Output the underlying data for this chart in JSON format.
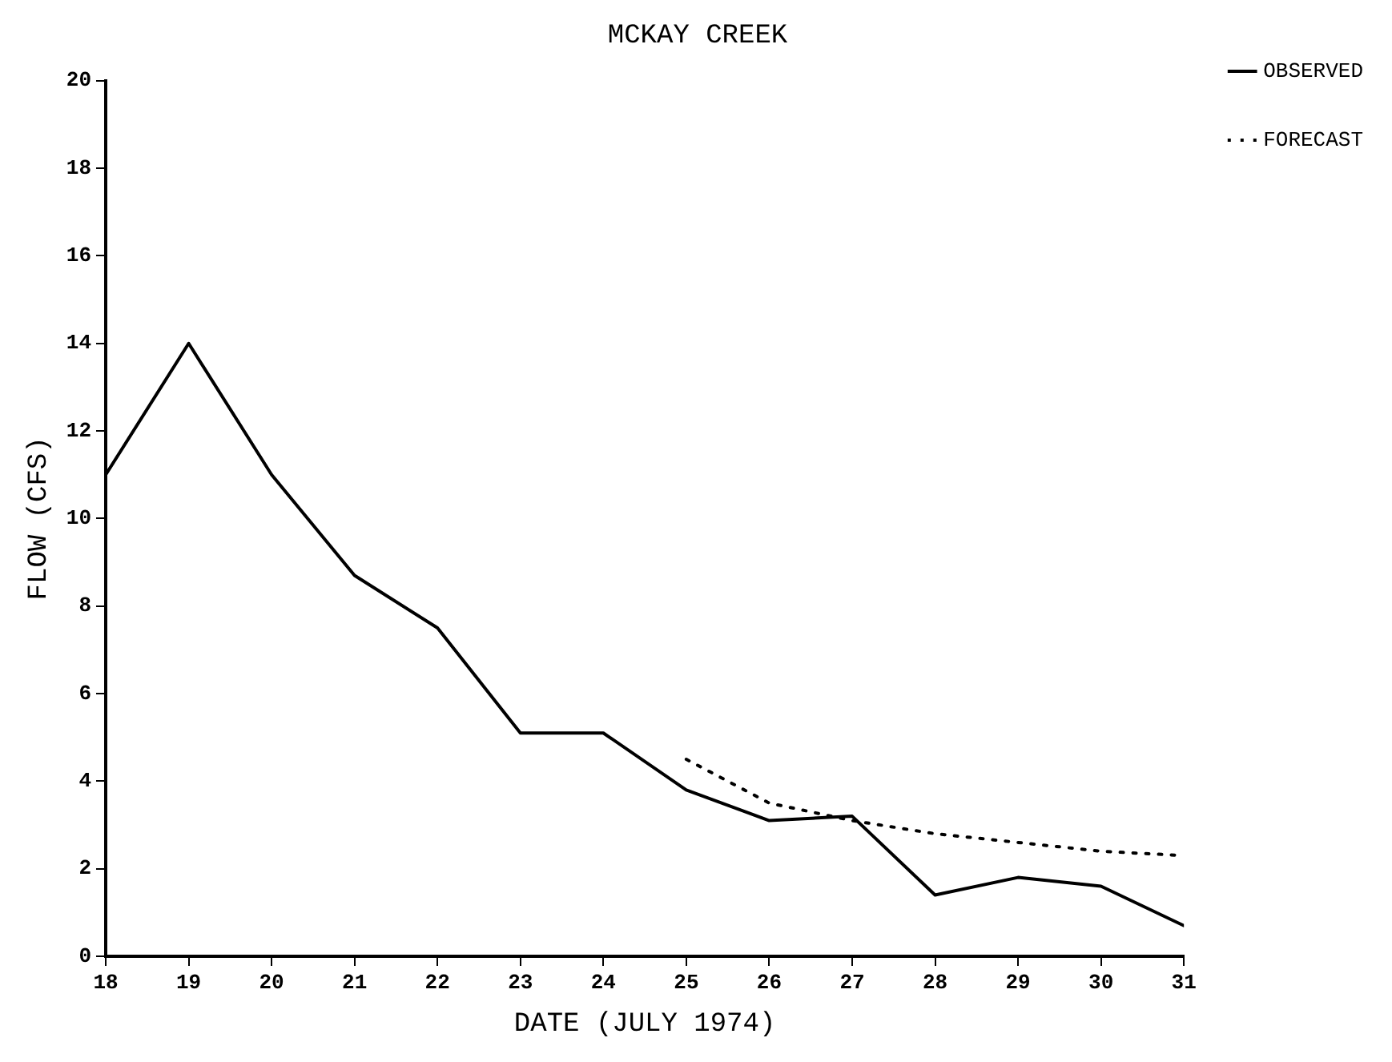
{
  "chart_data": {
    "type": "line",
    "title": "MCKAY CREEK",
    "xlabel": "DATE (JULY 1974)",
    "ylabel": "FLOW (CFS)",
    "xlim": [
      18,
      31
    ],
    "xticks": [
      18,
      19,
      20,
      21,
      22,
      23,
      24,
      25,
      26,
      27,
      28,
      29,
      30,
      31
    ],
    "ylim": [
      0,
      20
    ],
    "yticks": [
      0,
      2,
      4,
      6,
      8,
      10,
      12,
      14,
      16,
      18,
      20
    ],
    "series": [
      {
        "name": "OBSERVED",
        "color": "#000000",
        "line_style": "solid",
        "x": [
          18,
          19,
          20,
          21,
          22,
          23,
          24,
          25,
          26,
          27,
          28,
          29,
          30,
          31
        ],
        "values": [
          11,
          14,
          11,
          8.7,
          7.5,
          5.1,
          5.1,
          3.8,
          3.1,
          3.2,
          1.4,
          1.8,
          1.6,
          0.7
        ]
      },
      {
        "name": "FORECAST",
        "color": "#000000",
        "line_style": "dotted",
        "x": [
          25,
          26,
          27,
          28,
          29,
          30,
          31
        ],
        "values": [
          4.5,
          3.5,
          3.1,
          2.8,
          2.6,
          2.4,
          2.3
        ]
      }
    ],
    "grid": false,
    "legend": "top right",
    "marker": "none"
  }
}
